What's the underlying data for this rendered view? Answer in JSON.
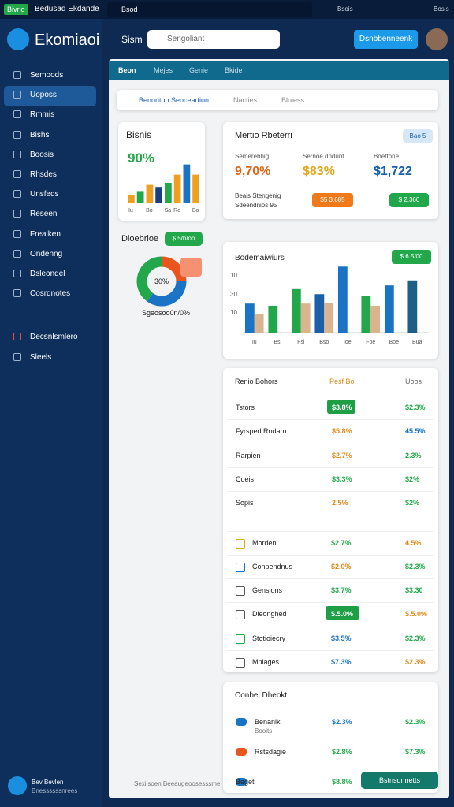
{
  "topbar": {
    "badge": "Bivrio",
    "title": "Bedusad Ekdande",
    "search": "Bsod",
    "status": "Bsois",
    "user": "Bosis"
  },
  "sidebar": {
    "logo": "Ekomiaoi",
    "items": [
      "Semoods",
      "Uoposs",
      "Rmmis",
      "Bishs",
      "Boosis",
      "Rhsdes",
      "Unsfeds",
      "Reseen",
      "Frealken",
      "Ondenng",
      "Dsleondel",
      "Cosrdnotes",
      "Decsnlsmlero",
      "Sleels"
    ],
    "user": {
      "name": "Bev Bevlen",
      "role": "Bnessssssnrees"
    }
  },
  "header": {
    "label": "Sism",
    "search": "Sengoliant",
    "button": "Dsnbbenneenk"
  },
  "tabs": [
    "Beon",
    "Mejes",
    "Genie",
    "Bkide"
  ],
  "filters": [
    "Benoritun Seoceartion",
    "Nacties",
    "Bloiess"
  ],
  "bisnis": {
    "title": "Bisnis",
    "value": "90%"
  },
  "distribution": {
    "title": "Dioebrioe",
    "pill": "$.5/b/oo",
    "caption": "Sgeosoo0n/0%"
  },
  "metrics": {
    "title": "Mertio Rbeterri",
    "chip": "Bao 5",
    "labels": [
      "Semerebhig",
      "Sernoe dndunt",
      "Boettone"
    ],
    "values": [
      "9,70%",
      "$83%",
      "$1,722"
    ],
    "colors": [
      "#e0661a",
      "#e0a81a",
      "#1a5fa8"
    ],
    "note": [
      "Beais Stengenig",
      "Sdeendnios 95"
    ],
    "pills": [
      "$5 3.685",
      "$ 2.360"
    ]
  },
  "chart_card": {
    "title": "Bodemaiwiurs",
    "pill": "$.6 5/00",
    "y_labels": [
      "10",
      "30",
      "10"
    ]
  },
  "chart_data": [
    {
      "type": "bar",
      "categories": [
        "Iu",
        null,
        "Bo",
        null,
        "Sa",
        "Ro",
        null,
        "Bo"
      ],
      "values": [
        20,
        30,
        45,
        40,
        50,
        70,
        95,
        70
      ],
      "colors": [
        "#f0a020",
        "#22a84a",
        "#f0a020",
        "#1a3f80",
        "#22a84a",
        "#f0a020",
        "#1a73c4",
        "#f0a020"
      ],
      "ylim": [
        0,
        100
      ]
    },
    {
      "type": "pie",
      "center_label": "30%",
      "values": [
        25,
        35,
        40
      ],
      "colors": [
        "#e8551e",
        "#1a73c4",
        "#22a84a"
      ]
    },
    {
      "type": "bar",
      "categories": [
        "Iu",
        "Bsi",
        "Fsl",
        "Bso",
        "Ioe",
        "Fbe",
        "Boe",
        "Bua"
      ],
      "ylim": [
        0,
        100
      ],
      "series": [
        {
          "values": [
            40,
            37,
            60,
            53,
            91,
            50,
            65,
            72
          ],
          "colors": [
            "#1a73c4",
            "#22a84a",
            "#22a84a",
            "#1a5fa8",
            "#1a73c4",
            "#22a84a",
            "#1a73c4",
            "#1f5f85"
          ]
        },
        {
          "color": "#d9b48f",
          "values": [
            25,
            null,
            40,
            41,
            null,
            37,
            null,
            null
          ]
        }
      ]
    }
  ],
  "table": {
    "headers": [
      "Renio Bohors",
      "Pesf Boi",
      "Uoos"
    ],
    "rows": [
      {
        "name": "Tstors",
        "v1": "$3.8%",
        "v2": "$2.3%",
        "c1": "#ffffff",
        "c2": "#22a84a",
        "pill": "#1e9e45"
      },
      {
        "name": "Fyrsped Rodarn",
        "v1": "$5.8%",
        "v2": "45.5%",
        "c1": "#e0881a",
        "c2": "#1a73c4"
      },
      {
        "name": "Rarpien",
        "v1": "$2.7%",
        "v2": "2.3%",
        "c1": "#e0881a",
        "c2": "#22a84a"
      },
      {
        "name": "Coeis",
        "v1": "$3.3%",
        "v2": "$2%",
        "c1": "#22a84a",
        "c2": "#22a84a"
      },
      {
        "name": "Sopis",
        "v1": "2.5%",
        "v2": "$2%",
        "c1": "#e0881a",
        "c2": "#22a84a"
      },
      {
        "name": "Mordenl",
        "v1": "$2.7%",
        "v2": "4.5%",
        "c1": "#22a84a",
        "c2": "#e0881a",
        "icon": "#e0a81a"
      },
      {
        "name": "Conpendnus",
        "v1": "$2.0%",
        "v2": "$2.3%",
        "c1": "#e0881a",
        "c2": "#22a84a",
        "icon": "#1a73c4"
      },
      {
        "name": "Gensions",
        "v1": "$3.7%",
        "v2": "$3.30",
        "c1": "#22a84a",
        "c2": "#22a84a",
        "icon": "#555555"
      },
      {
        "name": "Dieonghed",
        "v1": "$.5.0%",
        "v2": "$.5.0%",
        "c1": "#ffffff",
        "c2": "#e0881a",
        "pill": "#1e9e45",
        "icon": "#555555"
      },
      {
        "name": "Stotioiecry",
        "v1": "$3.5%",
        "v2": "$2.3%",
        "c1": "#1a73c4",
        "c2": "#22a84a",
        "icon": "#22a84a"
      },
      {
        "name": "Mniages",
        "v1": "$7.3%",
        "v2": "$2.3%",
        "c1": "#1a73c4",
        "c2": "#e0881a",
        "icon": "#555555"
      }
    ]
  },
  "bottom": {
    "title": "Conbel Dheokt",
    "rows": [
      {
        "name": "Benanik",
        "sub": "Booits",
        "v1": "$2.3%",
        "v2": "$2.3%",
        "c1": "#1a73c4",
        "c2": "#22a84a"
      },
      {
        "name": "Rstsdagie",
        "v1": "$2.8%",
        "v2": "$7.3%",
        "c1": "#22a84a",
        "c2": "#22a84a"
      },
      {
        "name": "Beget",
        "v1": "$8.8%",
        "c1": "#22a84a"
      }
    ],
    "button": "Bstnsdrinetts"
  },
  "footer": "Sexilsoen Beeaugeoosesssme"
}
